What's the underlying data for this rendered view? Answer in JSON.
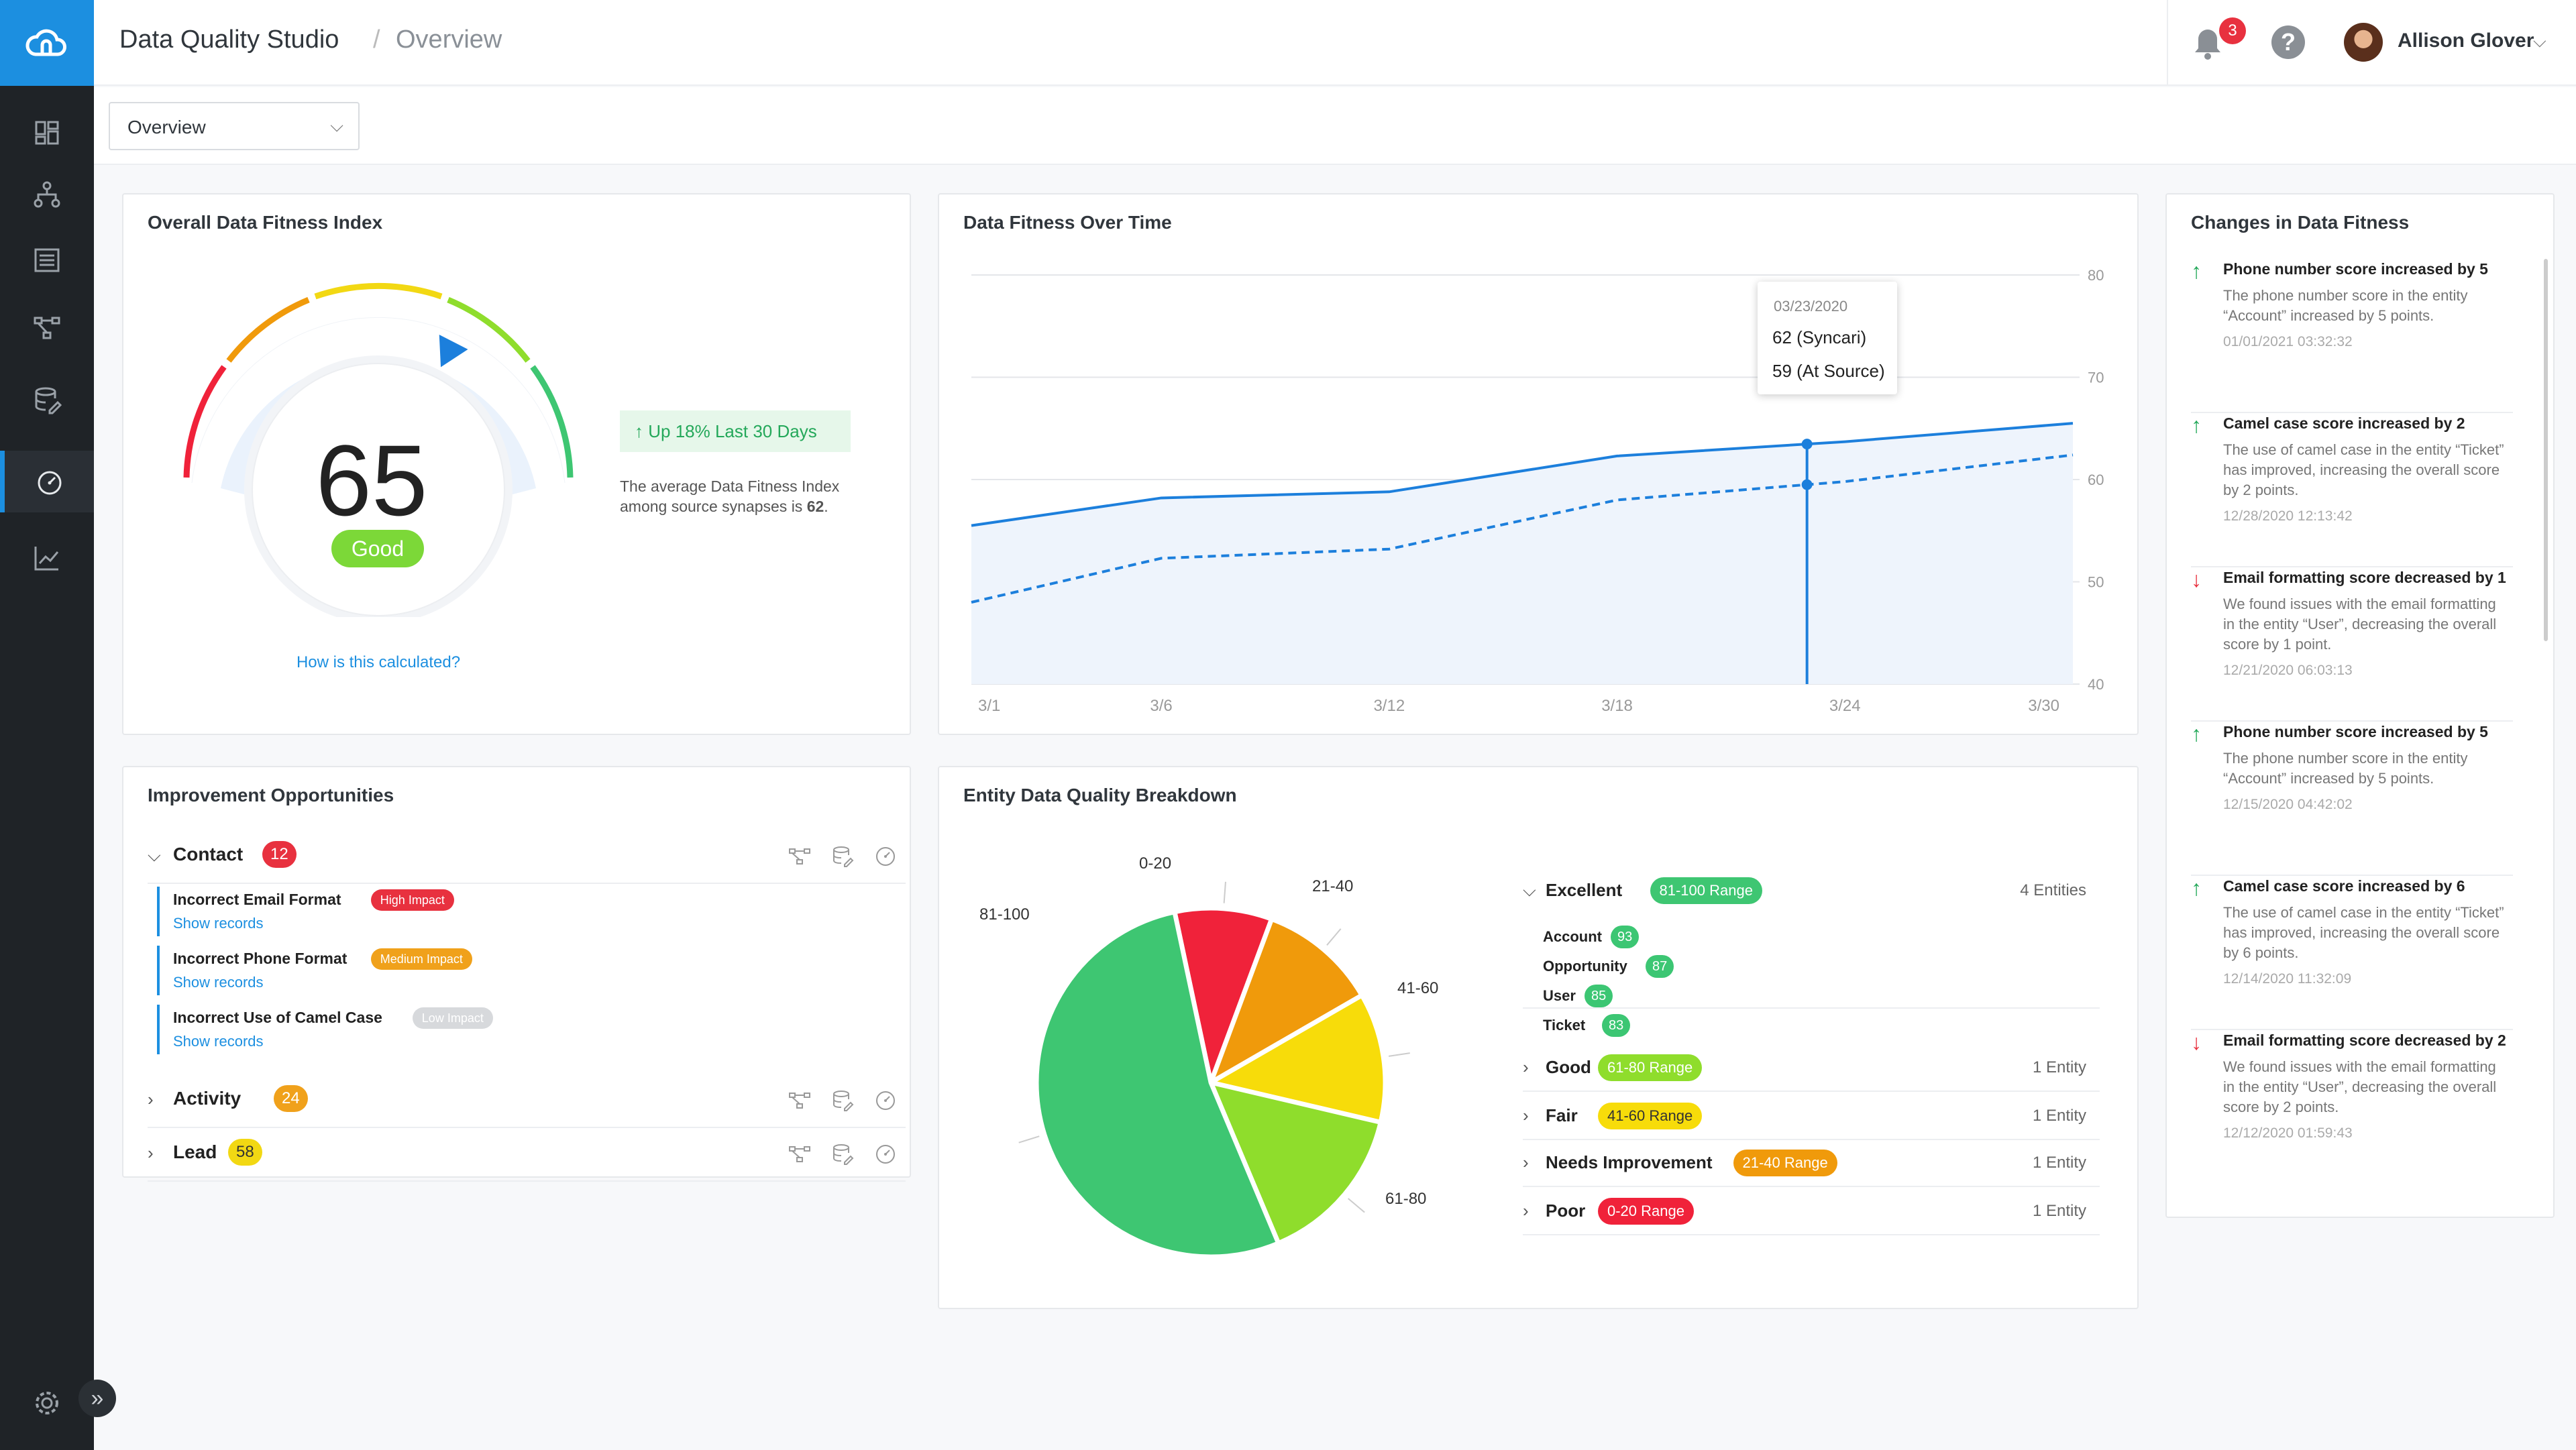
{
  "header": {
    "app_title": "Data Quality Studio",
    "separator": "/",
    "page": "Overview",
    "notifications": "3",
    "help": "?",
    "user_name": "Allison Glover",
    "user_caret": "⌵"
  },
  "sidebar": {
    "items": [
      "dashboard-icon",
      "hierarchy-icon",
      "list-icon",
      "flow-icon",
      "database-icon",
      "gauge-icon",
      "chart-icon"
    ],
    "active": "gauge-icon",
    "settings": "gear-icon",
    "expand": "»"
  },
  "subbar": {
    "view_select": "Overview",
    "caret": "⌵"
  },
  "fitness_index": {
    "title": "Overall Data Fitness Index",
    "score": "65",
    "rating": "Good",
    "gauge_fraction": 0.65,
    "calc_link": "How is this calculated?",
    "trend": "Up 18% Last 30 Days",
    "avg_prefix": "The average Data Fitness Index among source synapses is ",
    "avg_value": "62",
    "avg_suffix": "."
  },
  "fitness_over_time": {
    "title": "Data Fitness Over Time",
    "tooltip": {
      "date": "03/23/2020",
      "line1": "62 (Syncari)",
      "line2": "59 (At Source)"
    }
  },
  "chart_data": {
    "type": "line",
    "title": "Data Fitness Over Time",
    "x_ticks": [
      "3/1",
      "3/6",
      "3/12",
      "3/18",
      "3/24",
      "3/30"
    ],
    "y_ticks": [
      "40",
      "50",
      "60",
      "70",
      "80"
    ],
    "ylim": [
      40,
      80
    ],
    "grid": true,
    "series": [
      {
        "name": "Syncari",
        "style": "solid",
        "color": "#1c7fdc",
        "x": [
          0,
          5,
          11,
          17,
          23,
          29
        ],
        "values": [
          55.5,
          58.2,
          58.8,
          62.3,
          63.7,
          65.5
        ]
      },
      {
        "name": "At Source",
        "style": "dashed",
        "color": "#1c7fdc",
        "x": [
          0,
          5,
          11,
          17,
          23,
          29
        ],
        "values": [
          48,
          52.3,
          53.2,
          58,
          59.8,
          62.4
        ]
      }
    ],
    "highlight_x": 22
  },
  "improvement": {
    "title": "Improvement Opportunities",
    "groups": [
      {
        "name": "Contact",
        "count": "12",
        "color": "#e8313f",
        "expanded": true
      },
      {
        "name": "Activity",
        "count": "24",
        "color": "#f0a11b",
        "expanded": false
      },
      {
        "name": "Lead",
        "count": "58",
        "color": "#f2d813",
        "expanded": false
      }
    ],
    "issues": [
      {
        "title": "Incorrect Email Format",
        "impact": "High Impact",
        "color": "#e8313f",
        "link": "Show records"
      },
      {
        "title": "Incorrect Phone Format",
        "impact": "Medium Impact",
        "color": "#f0a11b",
        "link": "Show records"
      },
      {
        "title": "Incorrect Use of Camel Case",
        "impact": "Low Impact",
        "color": "#d7d9dc",
        "link": "Show records"
      }
    ]
  },
  "breakdown": {
    "title": "Entity Data Quality Breakdown",
    "pie": {
      "type": "pie",
      "slices": [
        {
          "label": "0-20",
          "value": 9,
          "color": "#f0223a"
        },
        {
          "label": "21-40",
          "value": 11,
          "color": "#f09a0b"
        },
        {
          "label": "41-60",
          "value": 12,
          "color": "#f7dc0a"
        },
        {
          "label": "61-80",
          "value": 15,
          "color": "#8fdd2c"
        },
        {
          "label": "81-100",
          "value": 53,
          "color": "#3ec672"
        }
      ]
    },
    "ranges": [
      {
        "name": "Excellent",
        "range": "81-100 Range",
        "count": "4 Entities",
        "bg": "#3ec672",
        "fg": "#fff",
        "expanded": true
      },
      {
        "name": "Good",
        "range": "61-80 Range",
        "count": "1 Entity",
        "bg": "#8fdd2c",
        "fg": "#fff"
      },
      {
        "name": "Fair",
        "range": "41-60 Range",
        "count": "1 Entity",
        "bg": "#f7dc0a",
        "fg": "#333"
      },
      {
        "name": "Needs Improvement",
        "range": "21-40 Range",
        "count": "1 Entity",
        "bg": "#f09a0b",
        "fg": "#fff"
      },
      {
        "name": "Poor",
        "range": "0-20 Range",
        "count": "1 Entity",
        "bg": "#f0223a",
        "fg": "#fff"
      }
    ],
    "entities": [
      {
        "name": "Account",
        "score": "93"
      },
      {
        "name": "Opportunity",
        "score": "87"
      },
      {
        "name": "User",
        "score": "85"
      },
      {
        "name": "Ticket",
        "score": "83"
      }
    ]
  },
  "changes": {
    "title": "Changes in Data Fitness",
    "items": [
      {
        "dir": "up",
        "title": "Phone number score increased by 5",
        "desc": "The phone number score in the entity “Account” increased by 5 points.",
        "time": "01/01/2021 03:32:32"
      },
      {
        "dir": "up",
        "title": "Camel case score increased by 2",
        "desc": "The use of camel case in the entity “Ticket” has improved, increasing the overall score by 2 points.",
        "time": "12/28/2020 12:13:42"
      },
      {
        "dir": "down",
        "title": "Email formatting score decreased by 1",
        "desc": "We found issues with the email formatting in the entity “User”, decreasing the overall score by 1 point.",
        "time": "12/21/2020 06:03:13"
      },
      {
        "dir": "up",
        "title": "Phone number score increased by 5",
        "desc": "The phone number score in the entity “Account” increased by 5 points.",
        "time": "12/15/2020 04:42:02"
      },
      {
        "dir": "up",
        "title": "Camel case score increased by 6",
        "desc": "The use of camel case in the entity “Ticket” has improved, increasing the overall score by 6 points.",
        "time": "12/14/2020 11:32:09"
      },
      {
        "dir": "down",
        "title": "Email formatting score decreased by 2",
        "desc": "We found issues with the email formatting in the entity “User”, decreasing the overall score by 2 points.",
        "time": "12/12/2020 01:59:43"
      }
    ]
  }
}
